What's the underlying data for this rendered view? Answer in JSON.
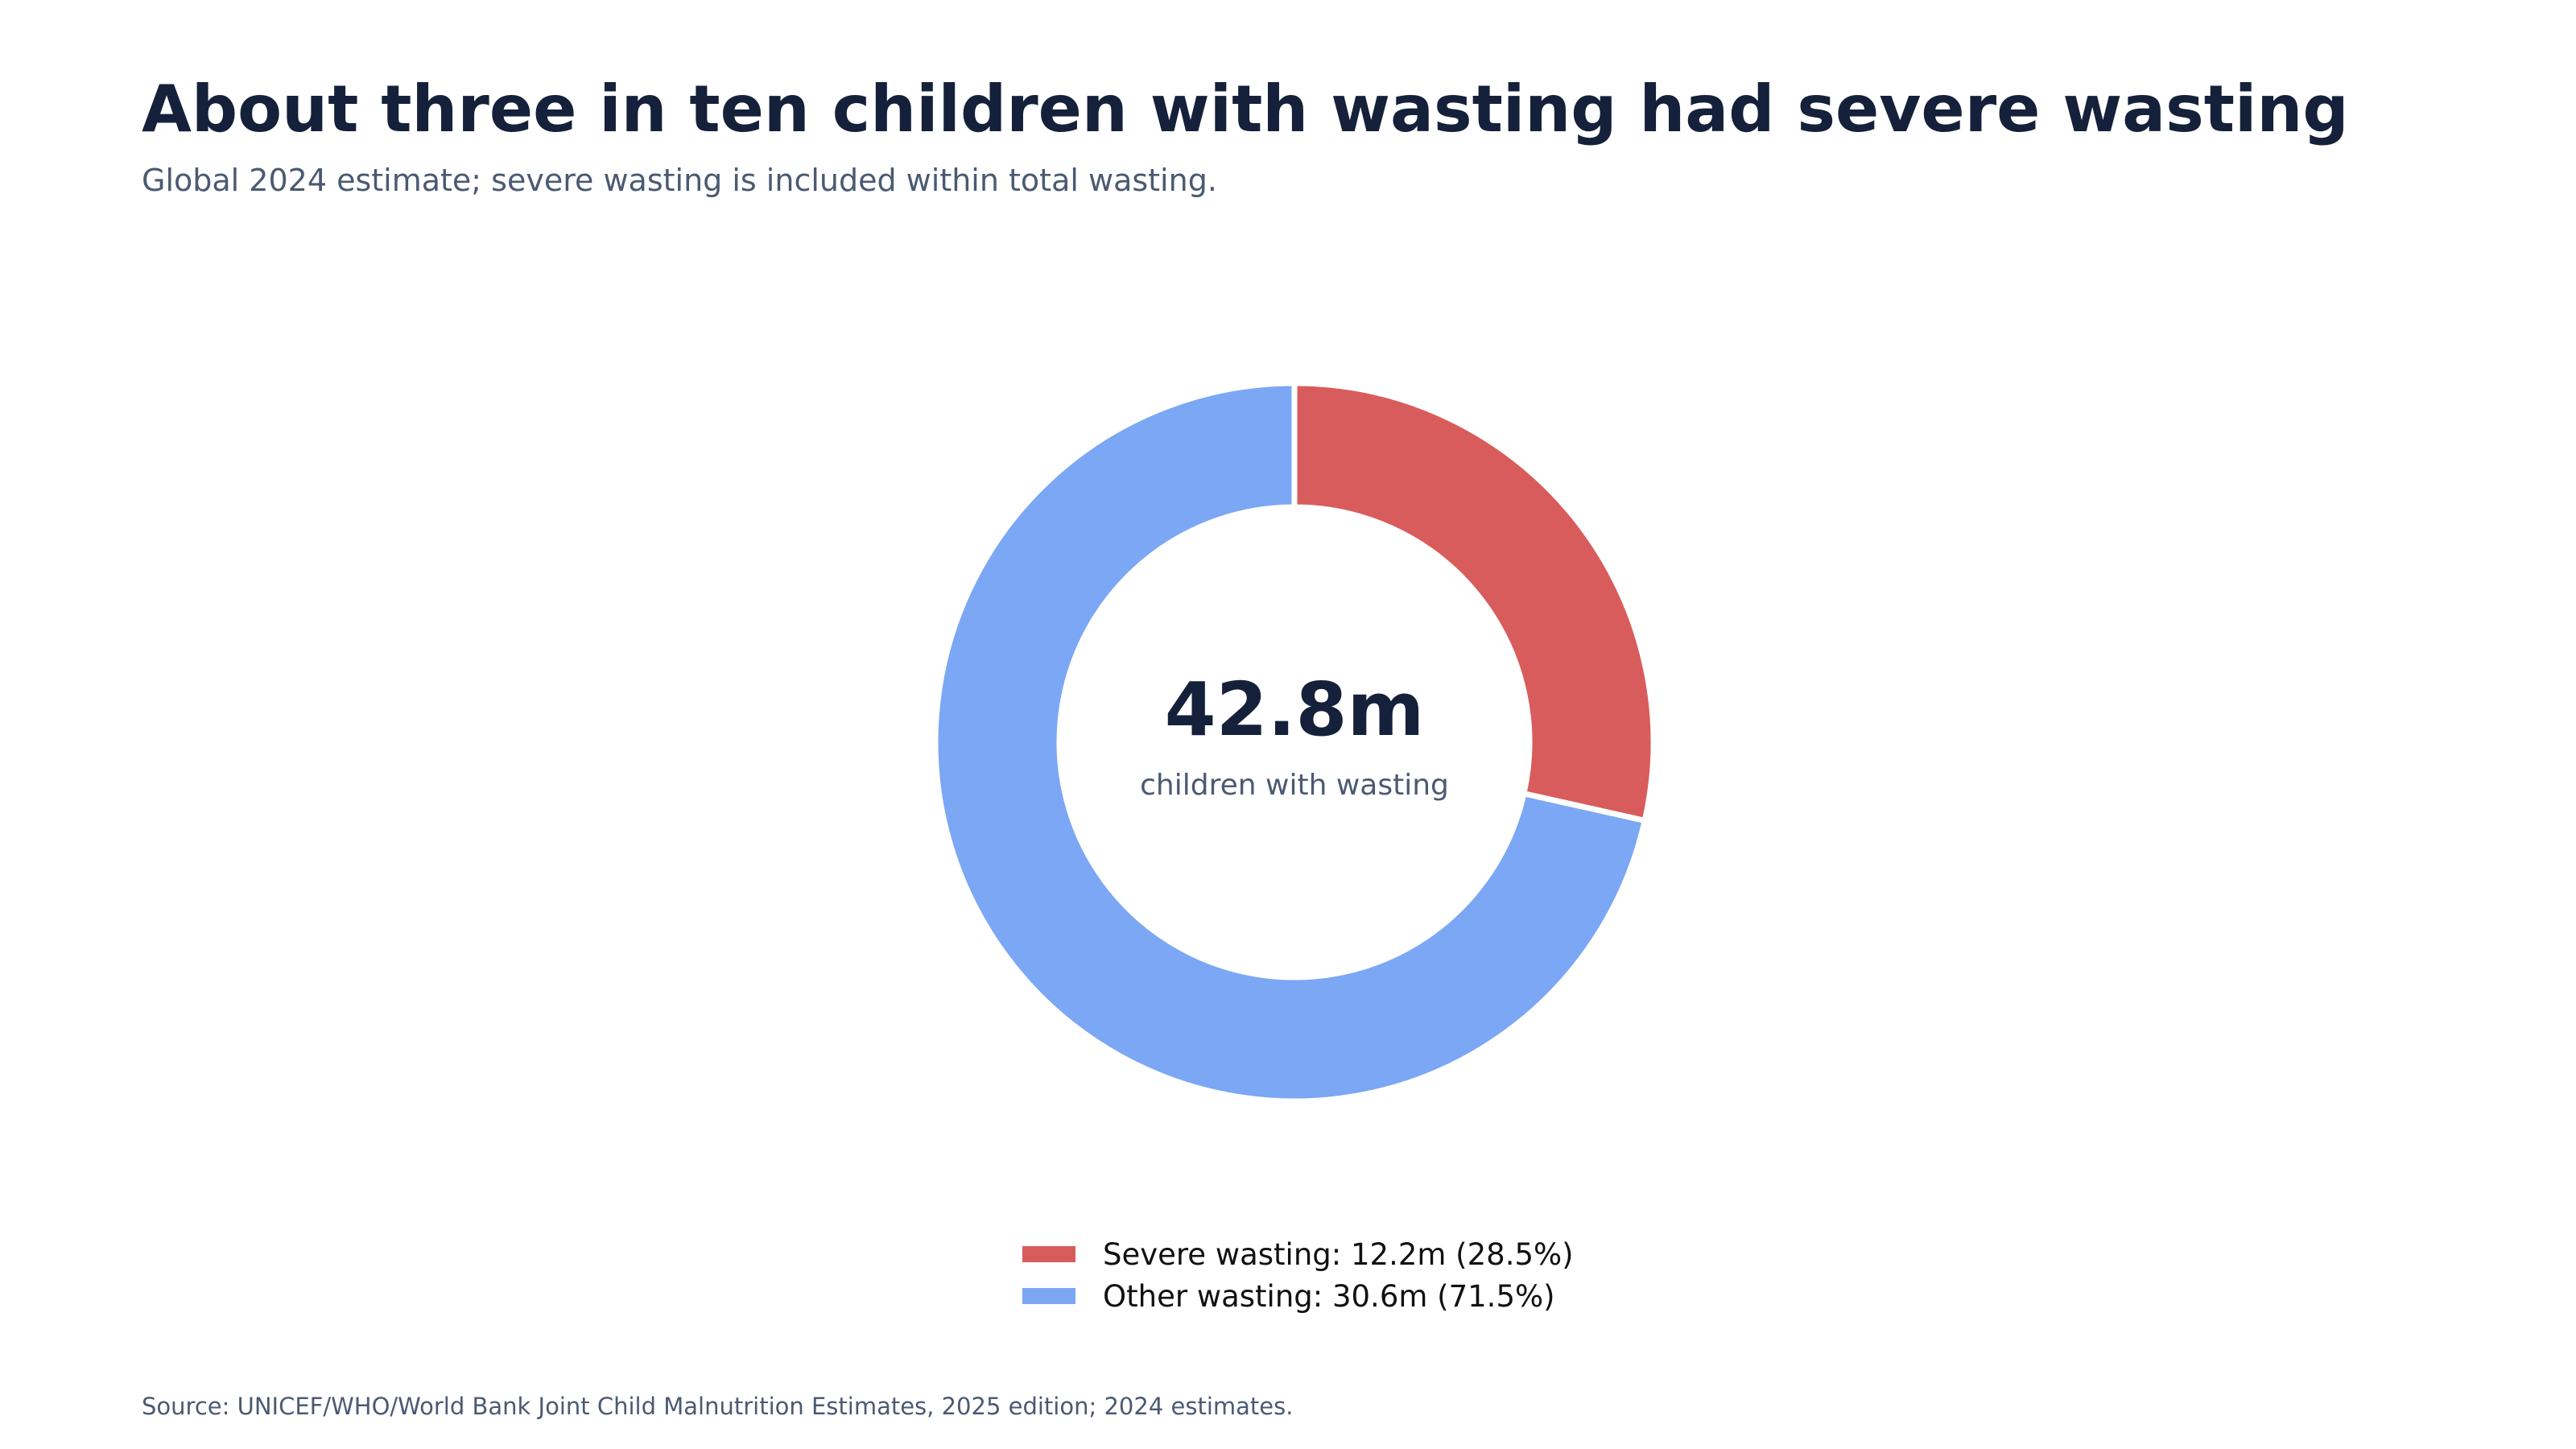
{
  "header": {
    "title": "About three in ten children with wasting had severe wasting",
    "subtitle": "Global 2024 estimate; severe wasting is included within total wasting."
  },
  "center": {
    "value": "42.8m",
    "label": "children with wasting"
  },
  "legend": [
    {
      "label": "Severe wasting: 12.2m (28.5%)",
      "color": "#d95c5c"
    },
    {
      "label": "Other wasting: 30.6m (71.5%)",
      "color": "#7ba7f5"
    }
  ],
  "footer": {
    "source": "Source: UNICEF/WHO/World Bank Joint Child Malnutrition Estimates, 2025 edition; 2024 estimates."
  },
  "chart_data": {
    "type": "pie",
    "variant": "donut",
    "title": "About three in ten children with wasting had severe wasting",
    "subtitle": "Global 2024 estimate; severe wasting is included within total wasting.",
    "categories": [
      "Severe wasting",
      "Other wasting"
    ],
    "values": [
      12.2,
      30.6
    ],
    "units": "million children",
    "colors": [
      "#d95c5c",
      "#7ba7f5"
    ],
    "total": 42.8,
    "legend_position": "bottom-center"
  }
}
